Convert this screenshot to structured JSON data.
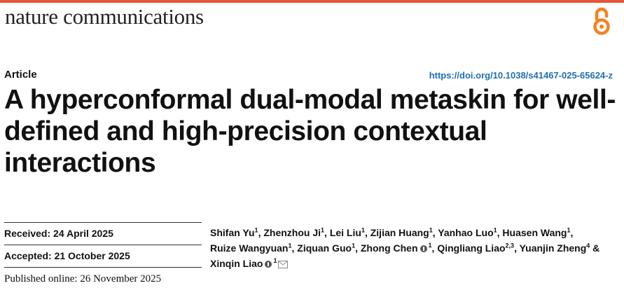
{
  "header": {
    "journal_name": "nature communications",
    "accent_color": "#e8533a",
    "open_access_icon": "open-access-icon"
  },
  "article": {
    "type": "Article",
    "doi": "https://doi.org/10.1038/s41467-025-65624-z",
    "title": "A hyperconformal dual-modal metaskin for well-defined and high-precision contextual interactions"
  },
  "history": {
    "received": "Received: 24 April 2025",
    "accepted": "Accepted: 21 October 2025",
    "published": "Published online: 26 November 2025"
  },
  "authors": [
    {
      "name": "Shifan Yu",
      "aff": "1",
      "sep": ","
    },
    {
      "name": "Zhenzhou Ji",
      "aff": "1",
      "sep": ","
    },
    {
      "name": "Lei Liu",
      "aff": "1",
      "sep": ","
    },
    {
      "name": "Zijian Huang",
      "aff": "1",
      "sep": ","
    },
    {
      "name": "Yanhao Luo",
      "aff": "1",
      "sep": ","
    },
    {
      "name": "Huasen Wang",
      "aff": "1",
      "sep": ","
    },
    {
      "name": "Ruize Wangyuan",
      "aff": "1",
      "sep": ","
    },
    {
      "name": "Ziquan Guo",
      "aff": "1",
      "sep": ","
    },
    {
      "name": "Zhong Chen",
      "aff": "1",
      "sep": ",",
      "orcid": true
    },
    {
      "name": "Qingliang Liao",
      "aff": "2,3",
      "sep": ","
    },
    {
      "name": "Yuanjin Zheng",
      "aff": "4",
      "sep": " &"
    },
    {
      "name": "Xinqin Liao",
      "aff": "1",
      "sep": "",
      "orcid": true,
      "corresponding": true
    }
  ]
}
